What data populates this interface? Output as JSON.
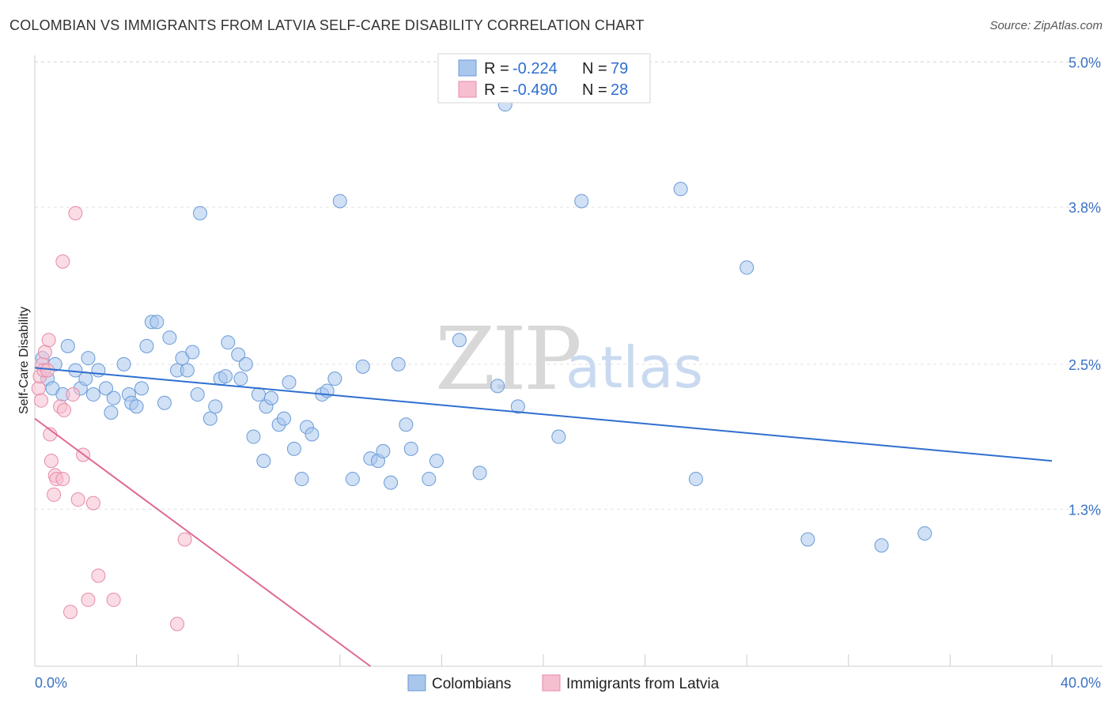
{
  "header": {
    "title": "COLOMBIAN VS IMMIGRANTS FROM LATVIA SELF-CARE DISABILITY CORRELATION CHART",
    "source": "Source: ZipAtlas.com"
  },
  "watermark": {
    "zip": "ZIP",
    "atlas": "atlas"
  },
  "legend": {
    "rows": [
      {
        "r_label": "R =",
        "r_value": "-0.224",
        "n_label": "N =",
        "n_value": "79",
        "color": "#7ea6e0"
      },
      {
        "r_label": "R =",
        "r_value": "-0.490",
        "n_label": "N =",
        "n_value": "28",
        "color": "#f0a0b8"
      }
    ]
  },
  "bottom_legend": {
    "items": [
      {
        "label": "Colombians",
        "color": "#7ea6e0"
      },
      {
        "label": "Immigrants from Latvia",
        "color": "#f0a0b8"
      }
    ]
  },
  "colors": {
    "blue_fill": "#a9c6ec",
    "blue_stroke": "#6a9bd8",
    "blue_line": "#2f6fd0",
    "pink_fill": "#f6bfd0",
    "pink_stroke": "#e88aa8",
    "pink_line": "#e06890",
    "grid": "#e2e2e2",
    "axis_text": "#3a72c4"
  },
  "chart_data": {
    "type": "scatter",
    "title": "COLOMBIAN VS IMMIGRANTS FROM LATVIA SELF-CARE DISABILITY CORRELATION CHART",
    "xlabel": "",
    "ylabel": "Self-Care Disability",
    "xlim": [
      0,
      40
    ],
    "ylim": [
      0,
      5.2
    ],
    "x_tick_labels": [
      "0.0%",
      "40.0%"
    ],
    "y_ticks": [
      1.3,
      2.5,
      3.8,
      5.0
    ],
    "y_tick_labels": [
      "1.3%",
      "2.5%",
      "3.8%",
      "5.0%"
    ],
    "grid": true,
    "legend_position": "top-center",
    "series": [
      {
        "name": "Colombians",
        "R": -0.224,
        "N": 79,
        "trend": {
          "x": [
            0,
            40
          ],
          "y": [
            2.47,
            1.7
          ]
        },
        "points": [
          [
            0.3,
            2.55
          ],
          [
            0.5,
            2.38
          ],
          [
            0.7,
            2.3
          ],
          [
            0.8,
            2.5
          ],
          [
            1.3,
            2.65
          ],
          [
            1.1,
            2.25
          ],
          [
            1.6,
            2.45
          ],
          [
            1.8,
            2.3
          ],
          [
            2.0,
            2.38
          ],
          [
            2.1,
            2.55
          ],
          [
            2.3,
            2.25
          ],
          [
            2.5,
            2.45
          ],
          [
            2.8,
            2.3
          ],
          [
            3.0,
            2.1
          ],
          [
            3.1,
            2.22
          ],
          [
            3.5,
            2.5
          ],
          [
            3.7,
            2.25
          ],
          [
            3.8,
            2.18
          ],
          [
            4.0,
            2.15
          ],
          [
            4.2,
            2.3
          ],
          [
            4.4,
            2.65
          ],
          [
            4.6,
            2.85
          ],
          [
            4.8,
            2.85
          ],
          [
            5.1,
            2.18
          ],
          [
            5.3,
            2.72
          ],
          [
            5.6,
            2.45
          ],
          [
            5.8,
            2.55
          ],
          [
            6.0,
            2.45
          ],
          [
            6.2,
            2.6
          ],
          [
            6.4,
            2.25
          ],
          [
            6.5,
            3.75
          ],
          [
            6.9,
            2.05
          ],
          [
            7.1,
            2.15
          ],
          [
            7.3,
            2.38
          ],
          [
            7.5,
            2.4
          ],
          [
            7.6,
            2.68
          ],
          [
            8.0,
            2.58
          ],
          [
            8.1,
            2.38
          ],
          [
            8.3,
            2.5
          ],
          [
            8.6,
            1.9
          ],
          [
            8.8,
            2.25
          ],
          [
            9.0,
            1.7
          ],
          [
            9.1,
            2.15
          ],
          [
            9.3,
            2.22
          ],
          [
            9.6,
            2.0
          ],
          [
            9.8,
            2.05
          ],
          [
            10.0,
            2.35
          ],
          [
            10.2,
            1.8
          ],
          [
            10.5,
            1.55
          ],
          [
            10.7,
            1.98
          ],
          [
            10.9,
            1.92
          ],
          [
            11.3,
            2.25
          ],
          [
            11.5,
            2.28
          ],
          [
            11.8,
            2.38
          ],
          [
            12.0,
            3.85
          ],
          [
            12.5,
            1.55
          ],
          [
            12.9,
            2.48
          ],
          [
            13.2,
            1.72
          ],
          [
            13.5,
            1.7
          ],
          [
            13.7,
            1.78
          ],
          [
            14.0,
            1.52
          ],
          [
            14.3,
            2.5
          ],
          [
            14.6,
            2.0
          ],
          [
            14.8,
            1.8
          ],
          [
            15.5,
            1.55
          ],
          [
            15.8,
            1.7
          ],
          [
            16.7,
            2.7
          ],
          [
            17.5,
            1.6
          ],
          [
            18.2,
            2.32
          ],
          [
            18.5,
            4.65
          ],
          [
            19.0,
            2.15
          ],
          [
            20.6,
            1.9
          ],
          [
            21.5,
            3.85
          ],
          [
            25.4,
            3.95
          ],
          [
            26.0,
            1.55
          ],
          [
            28.0,
            3.3
          ],
          [
            30.4,
            1.05
          ],
          [
            33.3,
            1.0
          ],
          [
            35.0,
            1.1
          ]
        ]
      },
      {
        "name": "Immigrants from Latvia",
        "R": -0.49,
        "N": 28,
        "trend": {
          "x": [
            0,
            13.2
          ],
          "y": [
            2.05,
            0.0
          ]
        },
        "points": [
          [
            0.15,
            2.3
          ],
          [
            0.2,
            2.4
          ],
          [
            0.25,
            2.2
          ],
          [
            0.3,
            2.5
          ],
          [
            0.35,
            2.45
          ],
          [
            0.4,
            2.6
          ],
          [
            0.5,
            2.45
          ],
          [
            0.55,
            2.7
          ],
          [
            0.6,
            1.92
          ],
          [
            0.65,
            1.7
          ],
          [
            0.75,
            1.42
          ],
          [
            0.8,
            1.58
          ],
          [
            0.85,
            1.55
          ],
          [
            1.0,
            2.15
          ],
          [
            1.1,
            1.55
          ],
          [
            1.15,
            2.12
          ],
          [
            1.4,
            0.45
          ],
          [
            1.5,
            2.25
          ],
          [
            1.6,
            3.75
          ],
          [
            1.7,
            1.38
          ],
          [
            1.1,
            3.35
          ],
          [
            1.9,
            1.75
          ],
          [
            2.1,
            0.55
          ],
          [
            2.3,
            1.35
          ],
          [
            2.5,
            0.75
          ],
          [
            3.1,
            0.55
          ],
          [
            5.6,
            0.35
          ],
          [
            5.9,
            1.05
          ]
        ]
      }
    ]
  }
}
